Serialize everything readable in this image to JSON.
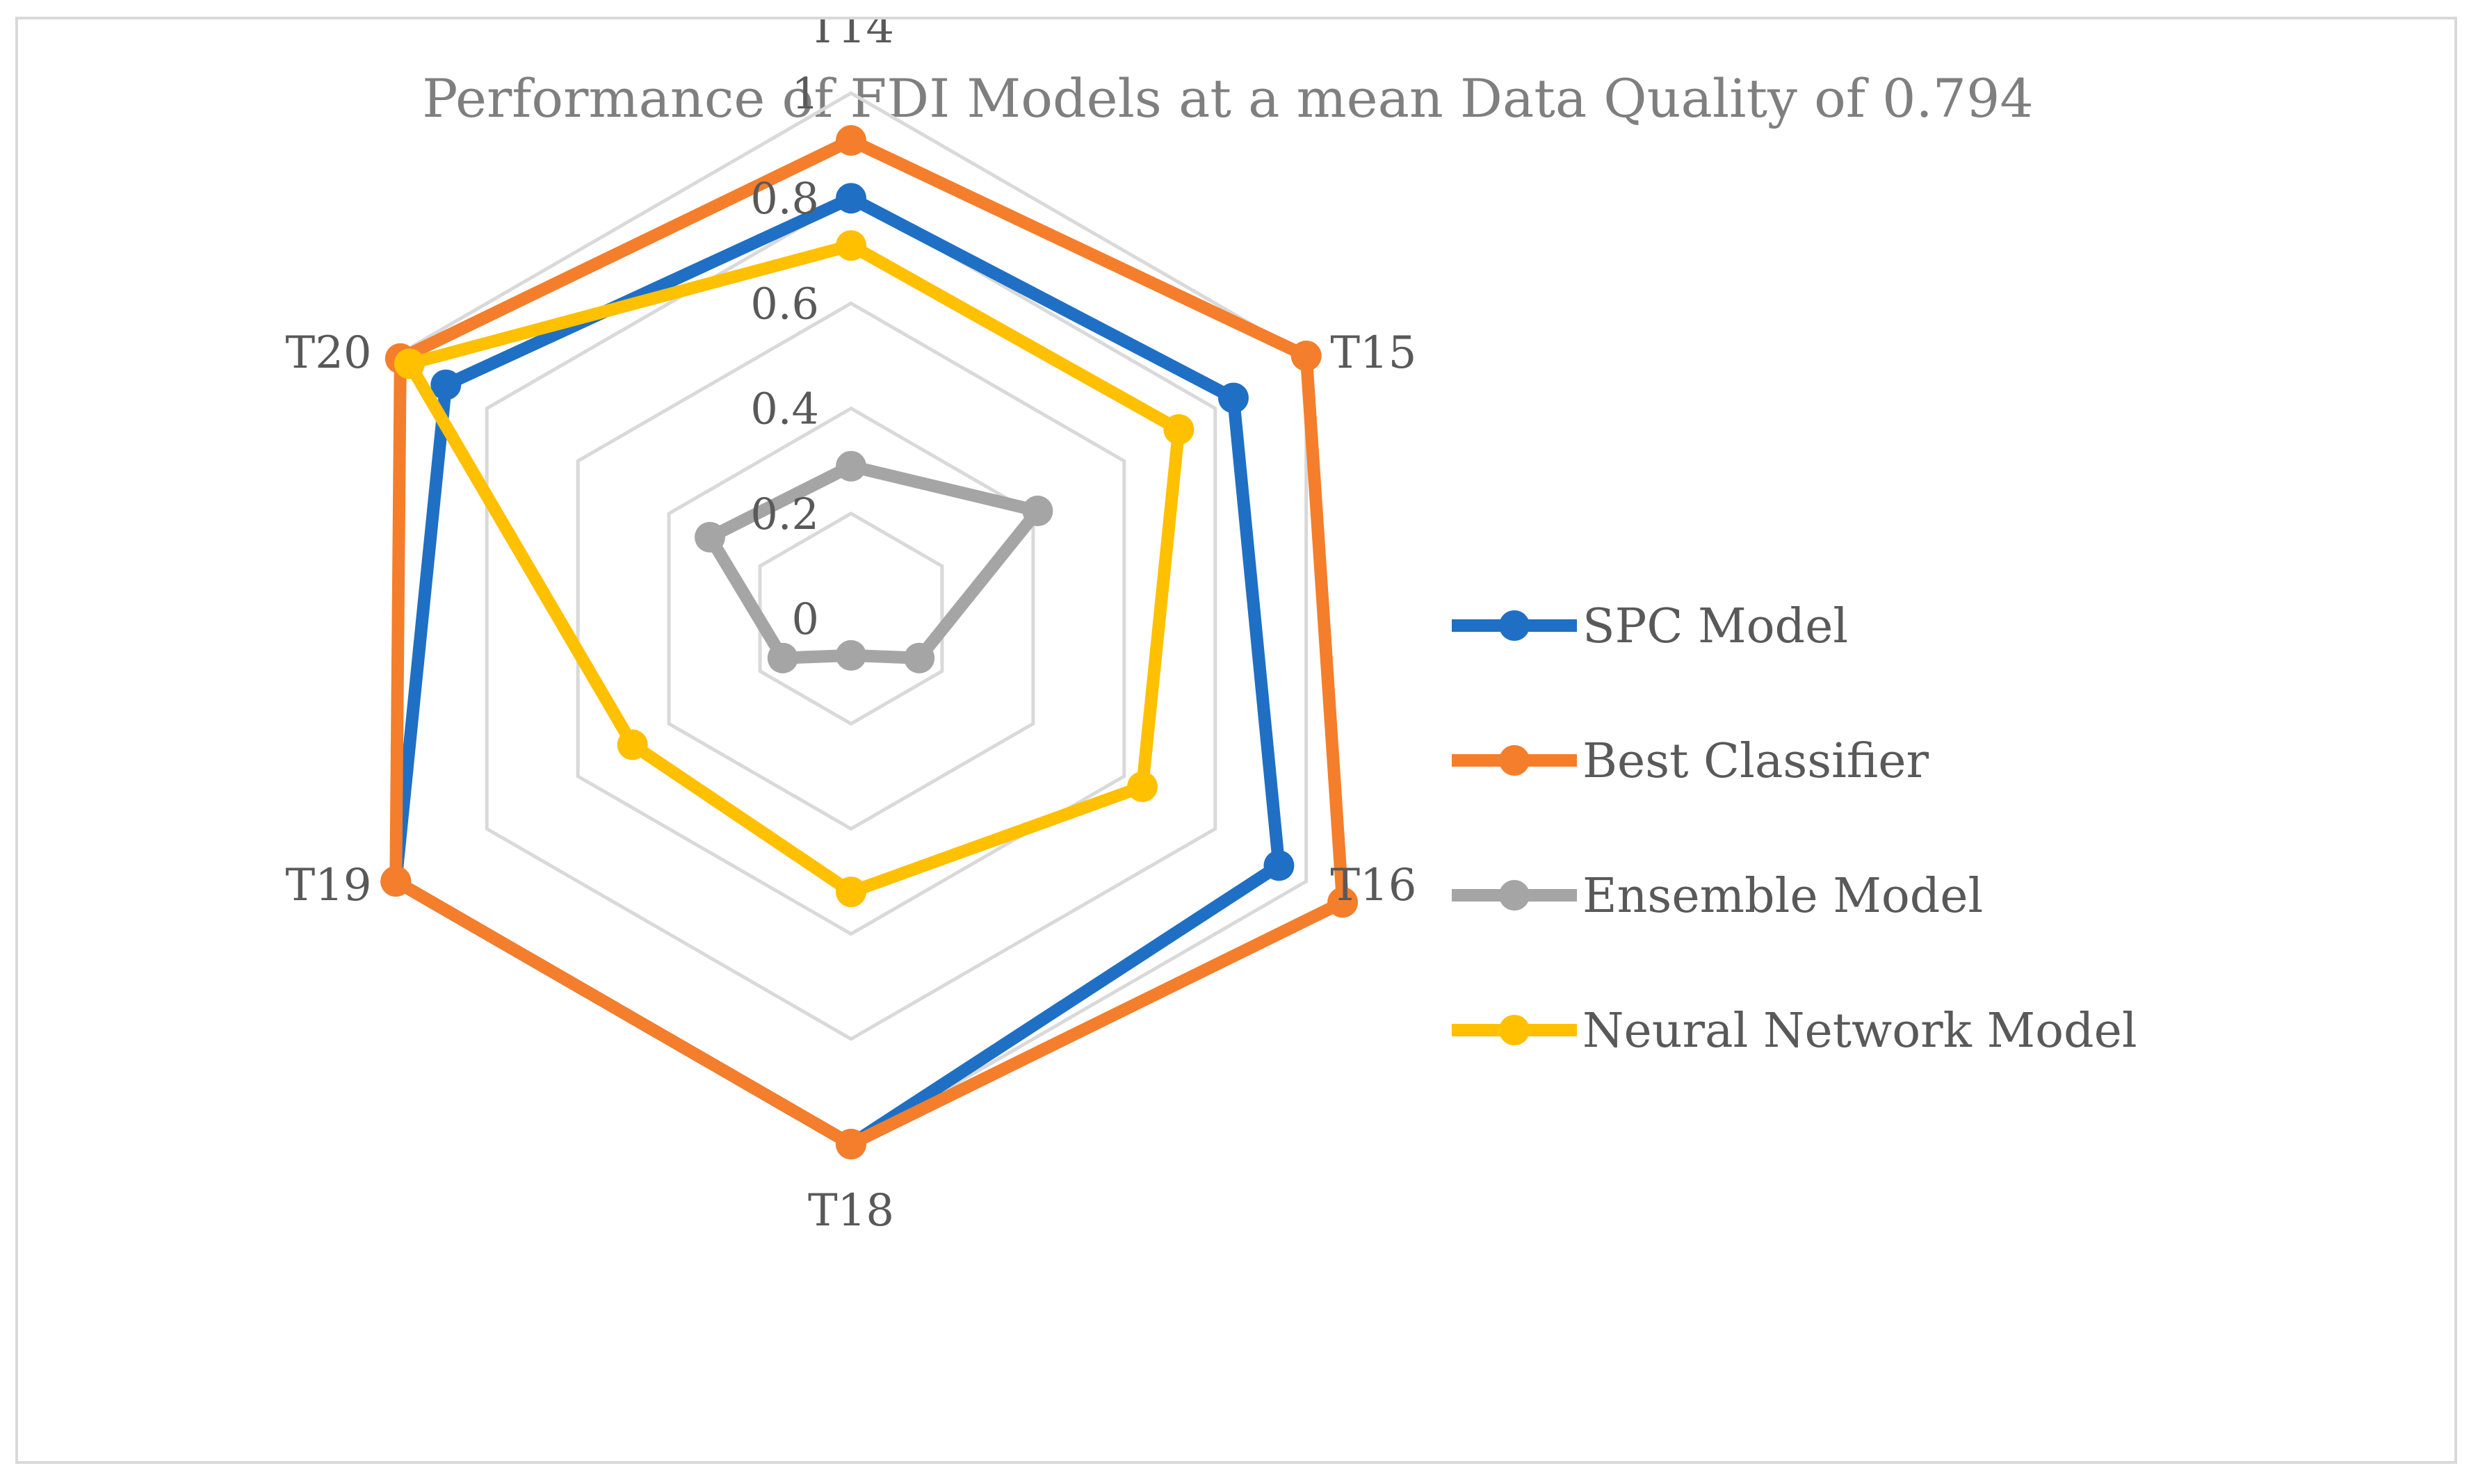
{
  "chart_data": {
    "type": "radar",
    "title": "Performance of FDI Models at a mean Data Quality of 0.794",
    "axes": [
      "T14",
      "T15",
      "T16",
      "T18",
      "T19",
      "T20"
    ],
    "radial_range": [
      0,
      1
    ],
    "radial_ticks": [
      "0",
      "0.2",
      "0.4",
      "0.6",
      "0.8",
      "1"
    ],
    "radial_tick_values": [
      0,
      0.2,
      0.4,
      0.6,
      0.8,
      1
    ],
    "gridlines": true,
    "legend_position": "right",
    "series": [
      {
        "name": "SPC Model",
        "color": "#1f6fc5",
        "values": [
          0.8,
          0.84,
          0.94,
          1.0,
          1.0,
          0.89
        ]
      },
      {
        "name": "Best Classifier",
        "color": "#f47e2b",
        "values": [
          0.91,
          1.0,
          1.08,
          1.0,
          1.0,
          0.99
        ]
      },
      {
        "name": "Ensemble Model",
        "color": "#a5a5a5",
        "values": [
          0.29,
          0.41,
          0.15,
          0.07,
          0.15,
          0.31
        ]
      },
      {
        "name": "Neural Network Model",
        "color": "#ffc000",
        "values": [
          0.71,
          0.72,
          0.64,
          0.52,
          0.48,
          0.97
        ]
      }
    ]
  }
}
